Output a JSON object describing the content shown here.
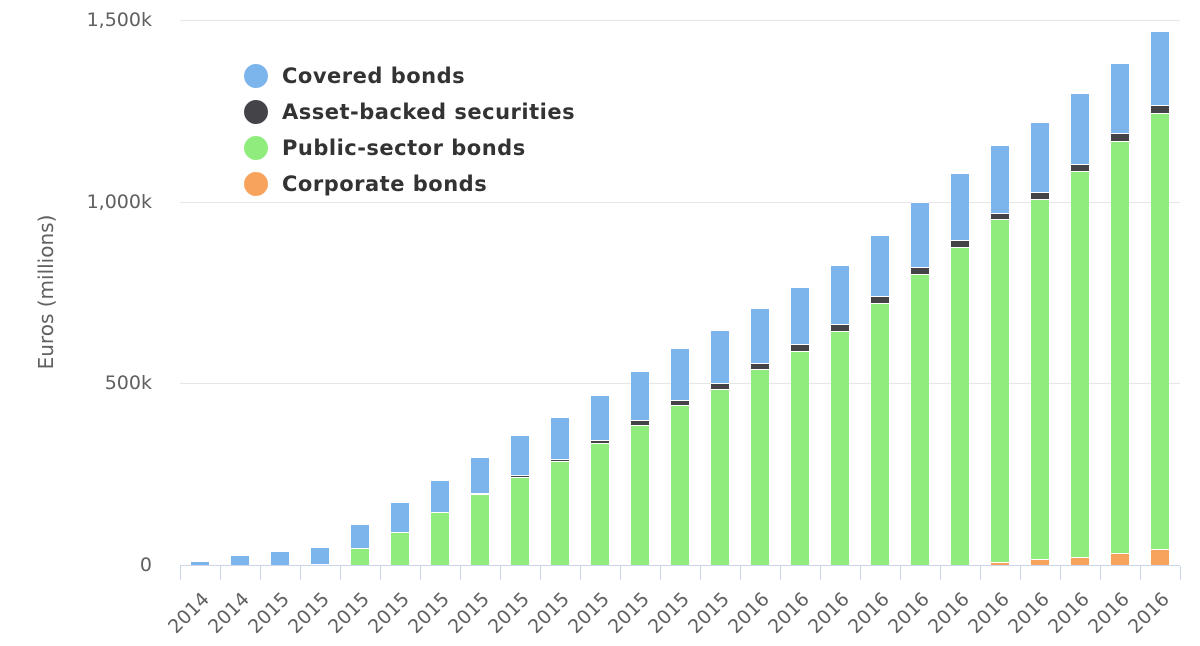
{
  "chart_data": {
    "type": "bar",
    "stacked": true,
    "title": "",
    "xlabel": "",
    "ylabel": "Euros (millions)",
    "ylim": [
      0,
      1500000
    ],
    "y_ticks": [
      {
        "value": 0,
        "label": "0"
      },
      {
        "value": 500000,
        "label": "500k"
      },
      {
        "value": 1000000,
        "label": "1,000k"
      },
      {
        "value": 1500000,
        "label": "1,500k"
      }
    ],
    "grid": true,
    "legend_position": "top-left inside",
    "categories": [
      "2014",
      "2014",
      "2015",
      "2015",
      "2015",
      "2015",
      "2015",
      "2015",
      "2015",
      "2015",
      "2015",
      "2015",
      "2015",
      "2015",
      "2016",
      "2016",
      "2016",
      "2016",
      "2016",
      "2016",
      "2016",
      "2016",
      "2016",
      "2016",
      "2016"
    ],
    "series": [
      {
        "name": "Covered bonds",
        "color": "#7cb5ec",
        "values": [
          10000,
          28000,
          39000,
          46000,
          66000,
          83000,
          87000,
          101000,
          111000,
          116000,
          125000,
          137000,
          141000,
          148000,
          150000,
          157000,
          164000,
          170000,
          178000,
          186000,
          188000,
          191000,
          195000,
          195000,
          204000
        ]
      },
      {
        "name": "Asset-backed securities",
        "color": "#434348",
        "values": [
          0,
          0,
          0,
          0,
          0,
          0,
          1000,
          2000,
          5000,
          6000,
          8000,
          12000,
          14000,
          15000,
          16000,
          19000,
          17000,
          17000,
          20000,
          18000,
          16000,
          19000,
          20000,
          20000,
          22000
        ]
      },
      {
        "name": "Public-sector bonds",
        "color": "#90ed7d",
        "values": [
          0,
          0,
          0,
          4000,
          46000,
          90000,
          145000,
          195000,
          242000,
          286000,
          336000,
          386000,
          441000,
          485000,
          540000,
          590000,
          645000,
          722000,
          800000,
          875000,
          945000,
          991000,
          1063000,
          1135000,
          1201000
        ]
      },
      {
        "name": "Corporate bonds",
        "color": "#f7a35c",
        "values": [
          0,
          0,
          0,
          0,
          0,
          0,
          0,
          0,
          0,
          0,
          0,
          0,
          0,
          0,
          0,
          0,
          0,
          0,
          0,
          1000,
          8000,
          17000,
          22000,
          33000,
          44000
        ]
      }
    ]
  },
  "legend": {
    "items": [
      {
        "label": "Covered bonds",
        "color": "#7cb5ec"
      },
      {
        "label": "Asset-backed securities",
        "color": "#434348"
      },
      {
        "label": "Public-sector bonds",
        "color": "#90ed7d"
      },
      {
        "label": "Corporate bonds",
        "color": "#f7a35c"
      }
    ]
  }
}
